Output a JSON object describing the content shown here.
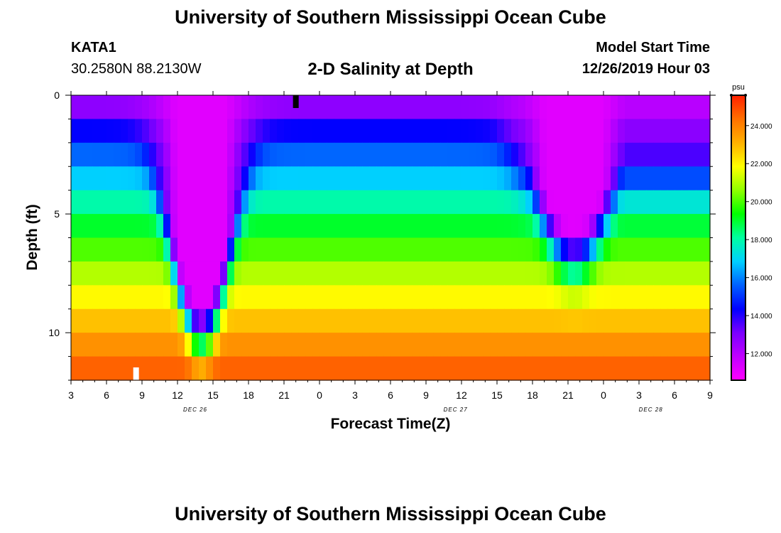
{
  "header": {
    "title": "University of Southern Mississippi Ocean Cube",
    "station_id": "KATA1",
    "station_coords": "30.2580N 88.2130W",
    "plot_title": "2-D Salinity at Depth",
    "model_start_label": "Model Start Time",
    "model_start_value": "12/26/2019 Hour 03"
  },
  "footer": {
    "title": "University of Southern Mississippi Ocean Cube"
  },
  "chart_data": {
    "type": "heatmap",
    "title": "2-D Salinity at Depth",
    "xlabel": "Forecast Time(Z)",
    "ylabel": "Depth (ft)",
    "x_hours": [
      3,
      57
    ],
    "x_tick_labels": [
      "3",
      "6",
      "9",
      "12",
      "15",
      "18",
      "21",
      "0",
      "3",
      "6",
      "9",
      "12",
      "15",
      "18",
      "21",
      "0",
      "3",
      "6",
      "9"
    ],
    "date_labels": [
      {
        "label": "DEC 26",
        "hour": 13.5
      },
      {
        "label": "DEC 27",
        "hour": 35.5
      },
      {
        "label": "DEC 28",
        "hour": 52
      }
    ],
    "y_ticks": [
      0,
      5,
      10
    ],
    "ylim": [
      0,
      12
    ],
    "y_inverted": true,
    "depth_layers": 12,
    "colorbar": {
      "unit": "psu",
      "range": [
        10.6,
        25.6
      ],
      "tick_labels": [
        "12.000",
        "14.000",
        "16.000",
        "18.000",
        "20.000",
        "22.000",
        "24.000"
      ],
      "tick_values": [
        12,
        14,
        16,
        18,
        20,
        22,
        24
      ],
      "colors": [
        "#ff00ff",
        "#c000ff",
        "#7a00ff",
        "#0000ff",
        "#0060ff",
        "#00d0ff",
        "#00ffa0",
        "#00ff00",
        "#90ff00",
        "#ffff00",
        "#ffb000",
        "#ff7000",
        "#ff2000"
      ]
    },
    "markers": [
      {
        "hour": 22.0,
        "position": "top",
        "color": "#000000"
      },
      {
        "hour": 8.5,
        "position": "bottom",
        "color": "#ffffff"
      }
    ],
    "salinity_model": {
      "surface_base": 11.5,
      "bottom_base": 25.0,
      "fresh_core_1_hour": 14.0,
      "fresh_core_1_depth": 8.8,
      "fresh_core_2_hour": 45.5,
      "fresh_core_2_depth": 5.5
    }
  }
}
